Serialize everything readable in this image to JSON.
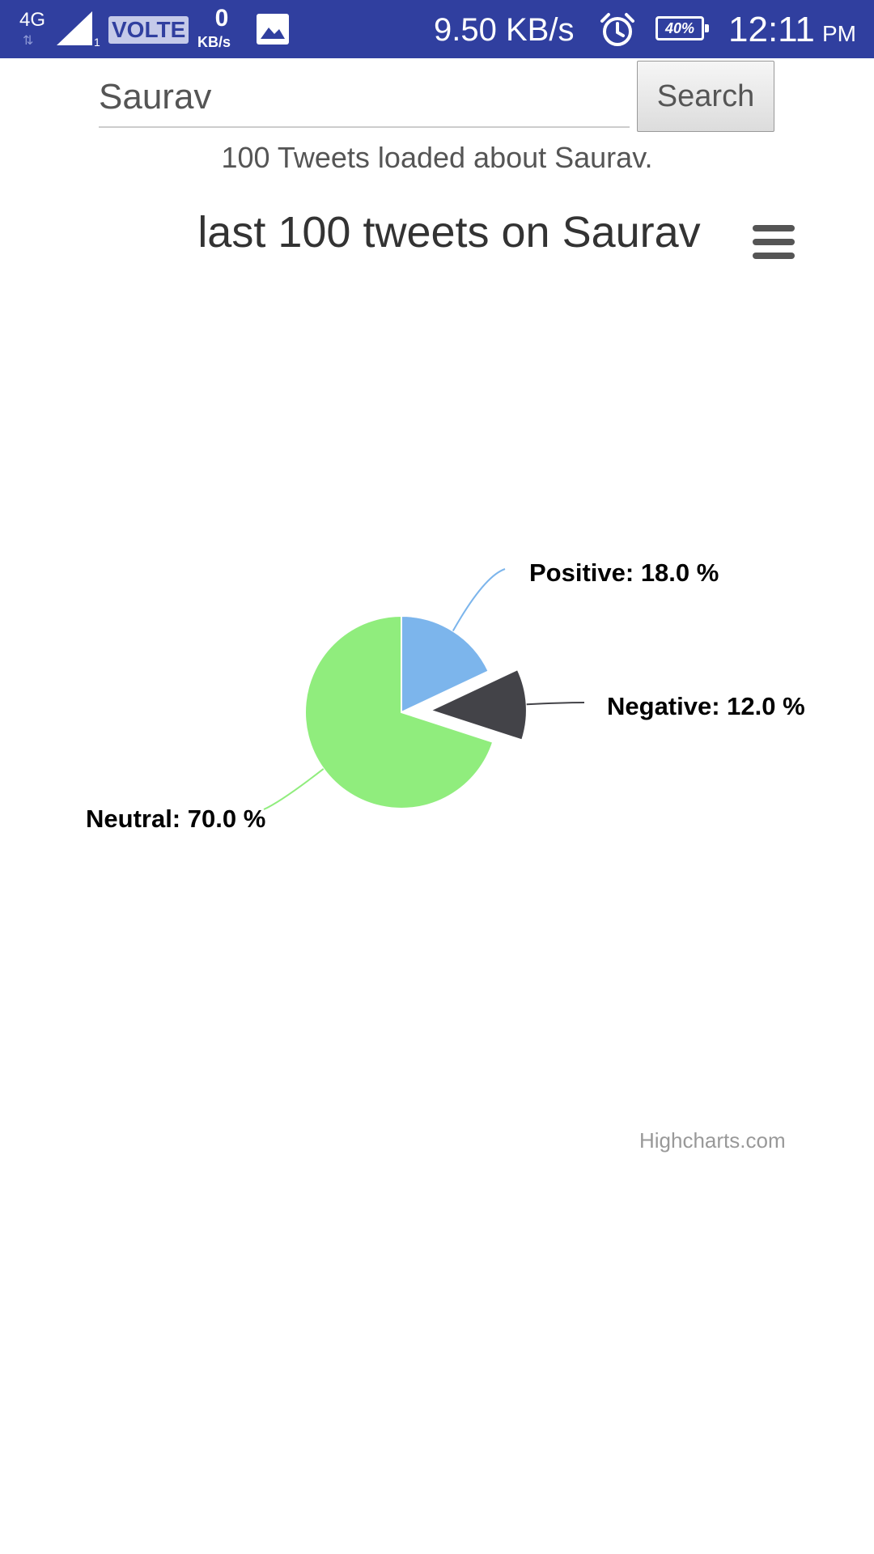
{
  "status_bar": {
    "network": "4G",
    "sim": "1",
    "volte": "VOLTE",
    "kbs_value": "0",
    "kbs_unit": "KB/s",
    "speed": "9.50 KB/s",
    "battery": "40%",
    "time": "12:11",
    "ampm": "PM",
    "bg_color": "#303f9f"
  },
  "search": {
    "value": "Saurav",
    "button_label": "Search"
  },
  "status_message": "100 Tweets loaded about Saurav.",
  "chart_data": {
    "type": "pie",
    "title": "last 100 tweets on Saurav",
    "credits": "Highcharts.com",
    "slices": [
      {
        "name": "Positive",
        "value": 18.0,
        "label": "Positive: 18.0 %",
        "color": "#7cb5ec",
        "sliced": false
      },
      {
        "name": "Negative",
        "value": 12.0,
        "label": "Negative: 12.0 %",
        "color": "#434348",
        "sliced": true
      },
      {
        "name": "Neutral",
        "value": 70.0,
        "label": "Neutral: 70.0 %",
        "color": "#90ed7d",
        "sliced": false
      }
    ]
  }
}
